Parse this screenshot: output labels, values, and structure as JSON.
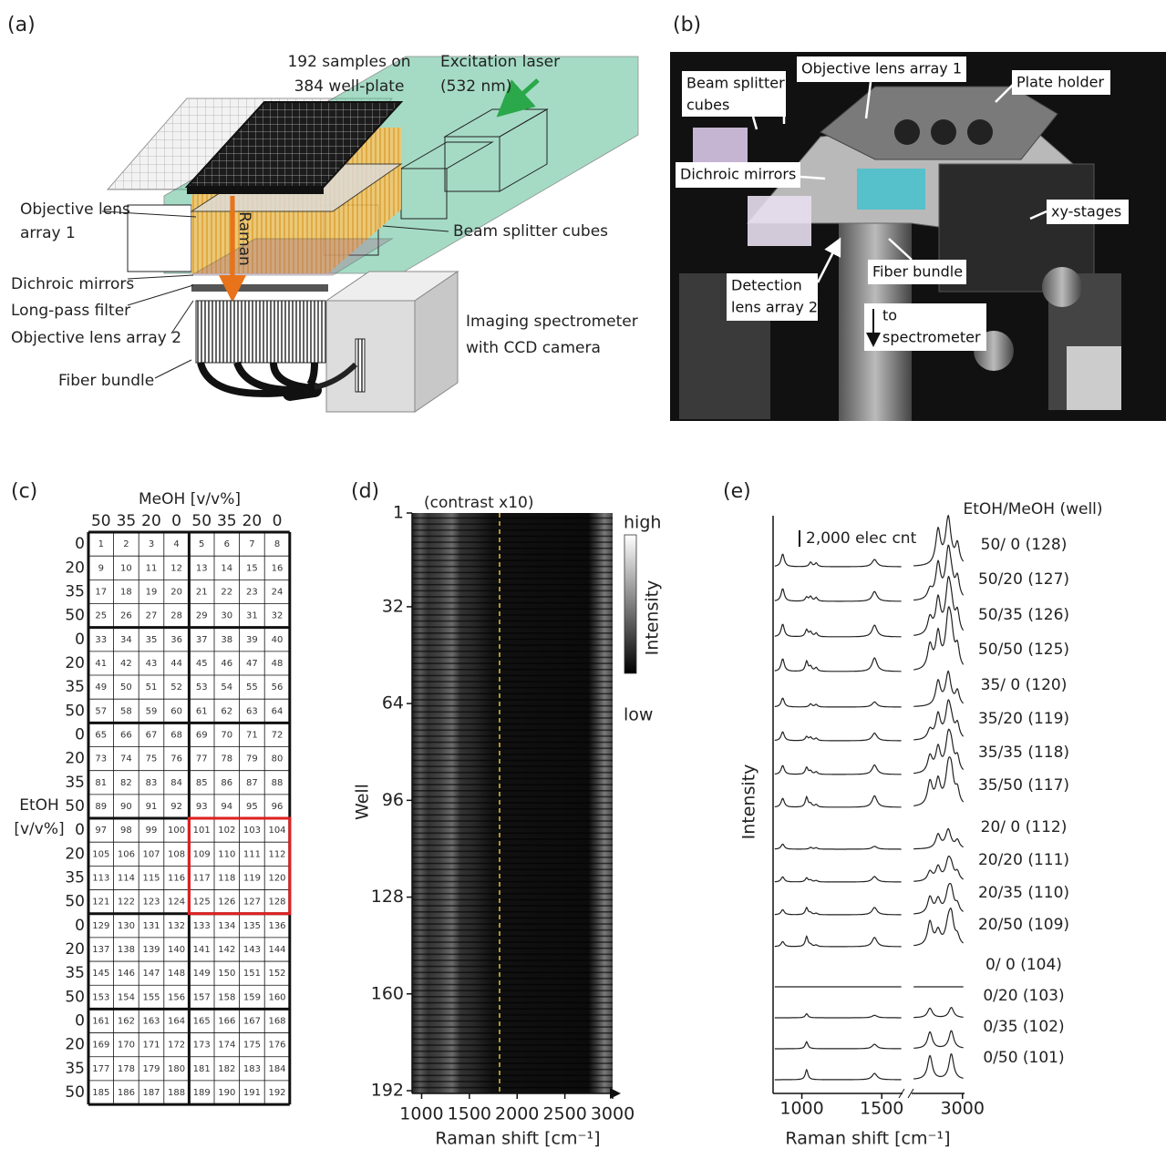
{
  "panel_a": {
    "label": "(a)",
    "plate_label": [
      "192 samples on",
      "384 well-plate"
    ],
    "laser_label": [
      "Excitation laser",
      "(532 nm)"
    ],
    "objective1": [
      "Objective lens",
      "array 1"
    ],
    "beam_splitter": "Beam splitter cubes",
    "dichroic": "Dichroic mirrors",
    "longpass": "Long-pass filter",
    "objective2": "Objective lens array 2",
    "spectrometer": [
      "Imaging spectrometer",
      "with CCD camera"
    ],
    "fiber": "Fiber bundle",
    "raman": "Raman"
  },
  "panel_b": {
    "label": "(b)",
    "labels": [
      [
        "Beam splitter",
        "cubes"
      ],
      [
        "Objective lens array 1"
      ],
      [
        "Plate holder"
      ],
      [
        "Dichroic mirrors"
      ],
      [
        "xy-stages"
      ],
      [
        "Fiber bundle"
      ],
      [
        "Detection",
        "lens array 2"
      ],
      [
        "to",
        "spectrometer"
      ]
    ]
  },
  "panel_c": {
    "label": "(c)",
    "col_axis": "MeOH [v/v%]",
    "columns": [
      50,
      35,
      20,
      0,
      50,
      35,
      20,
      0
    ],
    "row_axis": [
      "EtOH",
      "[v/v%]"
    ],
    "rows": [
      0,
      20,
      35,
      50,
      0,
      20,
      35,
      50,
      0,
      20,
      35,
      50,
      0,
      20,
      35,
      50,
      0,
      20,
      35,
      50,
      0,
      20,
      35,
      50
    ],
    "cells": [
      [
        1,
        2,
        3,
        4,
        5,
        6,
        7,
        8
      ],
      [
        9,
        10,
        11,
        12,
        13,
        14,
        15,
        16
      ],
      [
        17,
        18,
        19,
        20,
        21,
        22,
        23,
        24
      ],
      [
        25,
        26,
        27,
        28,
        29,
        30,
        31,
        32
      ],
      [
        33,
        34,
        35,
        36,
        37,
        38,
        39,
        40
      ],
      [
        41,
        42,
        43,
        44,
        45,
        46,
        47,
        48
      ],
      [
        49,
        50,
        51,
        52,
        53,
        54,
        55,
        56
      ],
      [
        57,
        58,
        59,
        60,
        61,
        62,
        63,
        64
      ],
      [
        65,
        66,
        67,
        68,
        69,
        70,
        71,
        72
      ],
      [
        73,
        74,
        75,
        76,
        77,
        78,
        79,
        80
      ],
      [
        81,
        82,
        83,
        84,
        85,
        86,
        87,
        88
      ],
      [
        89,
        90,
        91,
        92,
        93,
        94,
        95,
        96
      ],
      [
        97,
        98,
        99,
        100,
        101,
        102,
        103,
        104
      ],
      [
        105,
        106,
        107,
        108,
        109,
        110,
        111,
        112
      ],
      [
        113,
        114,
        115,
        116,
        117,
        118,
        119,
        120
      ],
      [
        121,
        122,
        123,
        124,
        125,
        126,
        127,
        128
      ],
      [
        129,
        130,
        131,
        132,
        133,
        134,
        135,
        136
      ],
      [
        137,
        138,
        139,
        140,
        141,
        142,
        143,
        144
      ],
      [
        145,
        146,
        147,
        148,
        149,
        150,
        151,
        152
      ],
      [
        153,
        154,
        155,
        156,
        157,
        158,
        159,
        160
      ],
      [
        161,
        162,
        163,
        164,
        165,
        166,
        167,
        168
      ],
      [
        169,
        170,
        171,
        172,
        173,
        174,
        175,
        176
      ],
      [
        177,
        178,
        179,
        180,
        181,
        182,
        183,
        184
      ],
      [
        185,
        186,
        187,
        188,
        189,
        190,
        191,
        192
      ]
    ]
  },
  "panel_d": {
    "label": "(d)",
    "note": "(contrast x10)",
    "y_title": "Well",
    "x_title": "Raman shift [cm⁻¹]",
    "ylim": [
      1,
      192
    ],
    "yticks": [
      1,
      32,
      64,
      96,
      128,
      160,
      192
    ],
    "xlim": [
      900,
      3000
    ],
    "xticks": [
      1000,
      1500,
      2000,
      2500,
      3000
    ],
    "colorbar": {
      "high": "high",
      "title": "Intensity",
      "low": "low"
    }
  },
  "panel_e": {
    "label": "(e)",
    "legend_title": "EtOH/MeOH (well)",
    "scale_bar": "2,000 elec cnt",
    "y_title": "Intensity",
    "x_title": "Raman shift [cm⁻¹]",
    "xlim": [
      820,
      1630
    ],
    "xlim_right": [
      2750,
      3010
    ],
    "xticks": [
      1000,
      1500,
      3000
    ],
    "spectra": [
      "50/ 0 (128)",
      "50/20 (127)",
      "50/35 (126)",
      "50/50 (125)",
      "35/ 0 (120)",
      "35/20 (119)",
      "35/35 (118)",
      "35/50 (117)",
      "20/ 0 (112)",
      "20/20 (111)",
      "20/35 (110)",
      "20/50 (109)",
      "0/ 0 (104)",
      "0/20 (103)",
      "0/35 (102)",
      "0/50 (101)"
    ]
  }
}
